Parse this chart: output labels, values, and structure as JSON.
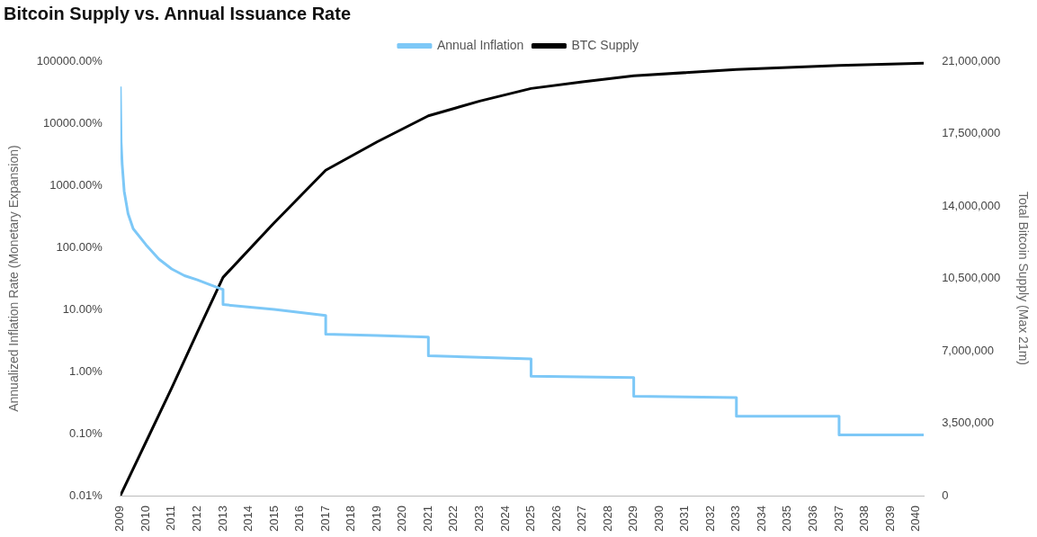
{
  "chart_data": {
    "type": "line",
    "title": "Bitcoin Supply vs. Annual Issuance Rate",
    "xlim": [
      2009,
      2040.3
    ],
    "xticks": [
      2009,
      2010,
      2011,
      2012,
      2013,
      2014,
      2015,
      2016,
      2017,
      2018,
      2019,
      2020,
      2021,
      2022,
      2023,
      2024,
      2025,
      2026,
      2027,
      2028,
      2029,
      2030,
      2031,
      2032,
      2033,
      2034,
      2035,
      2036,
      2037,
      2038,
      2039,
      2040
    ],
    "ylim": [
      0.01,
      100000
    ],
    "yticks": [
      {
        "value": 0.01,
        "label": "0.01%"
      },
      {
        "value": 0.1,
        "label": "0.10%"
      },
      {
        "value": 1,
        "label": "1.00%"
      },
      {
        "value": 10,
        "label": "10.00%"
      },
      {
        "value": 100,
        "label": "100.00%"
      },
      {
        "value": 1000,
        "label": "1000.00%"
      },
      {
        "value": 10000,
        "label": "10000.00%"
      },
      {
        "value": 100000,
        "label": "100000.00%"
      }
    ],
    "y2lim": [
      0,
      21000000
    ],
    "y2ticks": [
      {
        "value": 0,
        "label": "0"
      },
      {
        "value": 3500000,
        "label": "3,500,000"
      },
      {
        "value": 7000000,
        "label": "7,000,000"
      },
      {
        "value": 10500000,
        "label": "10,500,000"
      },
      {
        "value": 14000000,
        "label": "14,000,000"
      },
      {
        "value": 17500000,
        "label": "17,500,000"
      },
      {
        "value": 21000000,
        "label": "21,000,000"
      }
    ],
    "ylabel": "Annualized Inflation Rate (Monetary Expansion)",
    "y2label": "Total Bitcoin Supply (Max 21m)",
    "log": "y",
    "grid": false,
    "legend": "top",
    "marker": "none",
    "line_style": "solid",
    "series": [
      {
        "name": "Annual Inflation",
        "color": "#7dc8f7",
        "x": [
          2009,
          2009.03,
          2009.07,
          2009.15,
          2009.3,
          2009.5,
          2010,
          2010.5,
          2011,
          2011.5,
          2012,
          2012.5,
          2013,
          2013,
          2015,
          2017,
          2017,
          2019,
          2021,
          2021,
          2023,
          2025,
          2025,
          2027,
          2029,
          2029,
          2031,
          2033,
          2033,
          2035,
          2037,
          2037,
          2040.3
        ],
        "values": [
          39000,
          5000,
          2200,
          800,
          350,
          200,
          110,
          65,
          45,
          35,
          30,
          25,
          21,
          12,
          10,
          8,
          4,
          3.8,
          3.6,
          1.8,
          1.7,
          1.6,
          0.84,
          0.82,
          0.8,
          0.4,
          0.39,
          0.38,
          0.19,
          0.19,
          0.19,
          0.095,
          0.095
        ]
      },
      {
        "name": "BTC Supply",
        "color": "#000000",
        "axis": "y2",
        "x": [
          2009,
          2010,
          2011,
          2012,
          2013,
          2015,
          2017,
          2019,
          2021,
          2023,
          2025,
          2027,
          2029,
          2033,
          2037,
          2040.3
        ],
        "values": [
          0,
          2600000,
          5200000,
          7900000,
          10550000,
          13200000,
          15730000,
          17100000,
          18360000,
          19070000,
          19680000,
          20000000,
          20290000,
          20600000,
          20790000,
          20900000
        ]
      }
    ]
  }
}
